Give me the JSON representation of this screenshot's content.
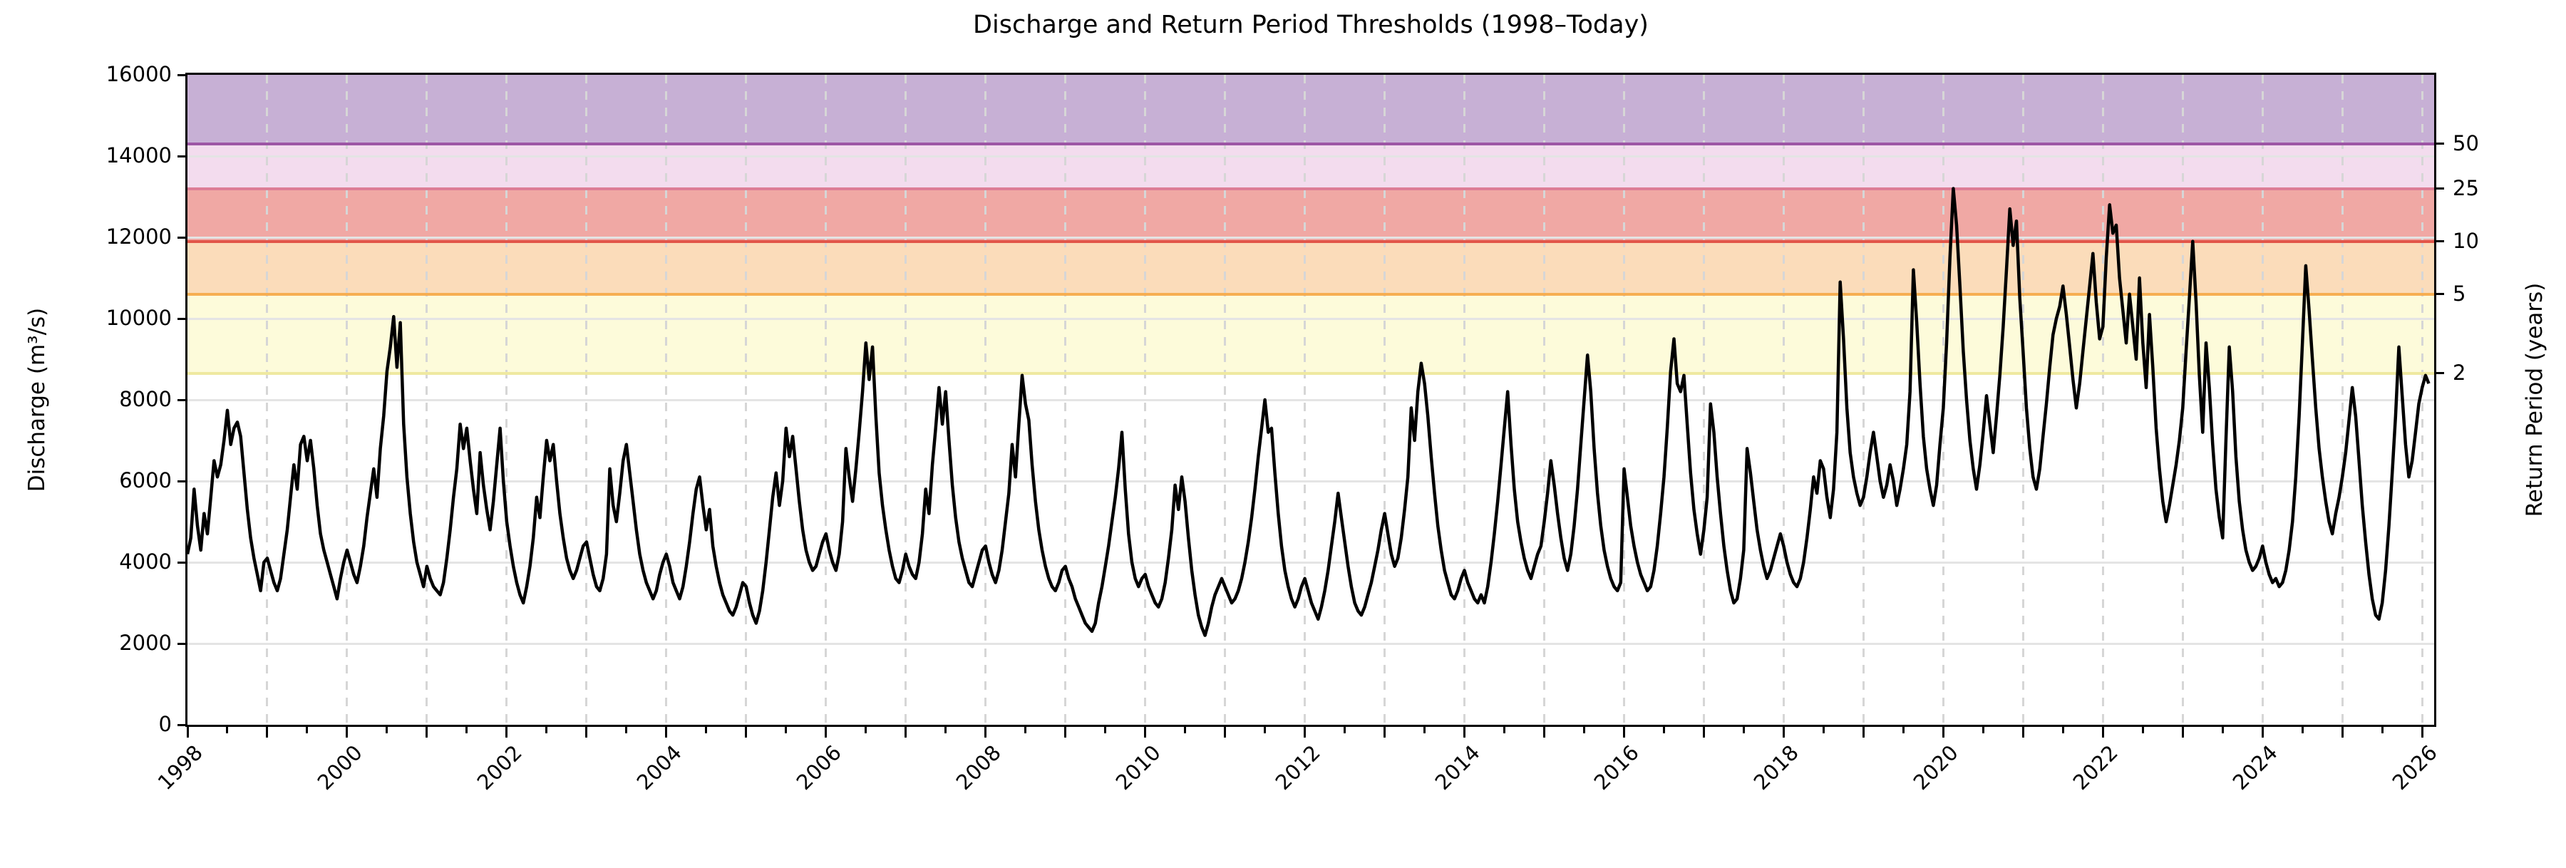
{
  "chart_data": {
    "type": "line",
    "title": "Discharge and Return Period Thresholds (1998–Today)",
    "ylabel_left": "Discharge (m³/s)",
    "ylabel_right": "Return Period (years)",
    "xlabel": "",
    "ylim": [
      0,
      16000
    ],
    "xlim": [
      1998.0,
      2026.15
    ],
    "y_ticks": [
      0,
      2000,
      4000,
      6000,
      8000,
      10000,
      12000,
      14000,
      16000
    ],
    "x_ticks_labeled": [
      1998,
      2000,
      2002,
      2004,
      2006,
      2008,
      2010,
      2012,
      2014,
      2016,
      2018,
      2020,
      2022,
      2024,
      2026
    ],
    "x_major_tick_step": 1,
    "x_minor_tick_step": 0.5,
    "grid": {
      "horizontal": "solid",
      "vertical": "dashed",
      "vertical_step_years": 1
    },
    "legend_position": "none",
    "line_color": "#000000",
    "thresholds": [
      {
        "name": "2-year",
        "return_period_label": "2",
        "discharge": 8650,
        "band_to": 10600,
        "band_color": "#fdfbda",
        "line_color": "#efe9a0"
      },
      {
        "name": "5-year",
        "return_period_label": "5",
        "discharge": 10600,
        "band_to": 11900,
        "band_color": "#fbdcba",
        "line_color": "#f6ae52"
      },
      {
        "name": "10-year",
        "return_period_label": "10",
        "discharge": 11900,
        "band_to": 13200,
        "band_color": "#f0a8a4",
        "line_color": "#e2564a"
      },
      {
        "name": "25-year",
        "return_period_label": "25",
        "discharge": 13200,
        "band_to": 14300,
        "band_color": "#f3dcee",
        "line_color": "#dd7d96"
      },
      {
        "name": "50-year",
        "return_period_label": "50",
        "discharge": 14300,
        "band_to": 16000,
        "band_color": "#c7b0d5",
        "line_color": "#9d56a5"
      }
    ],
    "series": [
      {
        "name": "Discharge",
        "unit": "m³/s",
        "color": "#000000",
        "x_start_year": 1998.0,
        "x_step_years": 0.0416667,
        "values": [
          4200,
          4600,
          5800,
          4900,
          4300,
          5200,
          4700,
          5600,
          6500,
          6100,
          6400,
          7000,
          7740,
          6900,
          7300,
          7450,
          7100,
          6200,
          5300,
          4600,
          4100,
          3700,
          3300,
          4000,
          4100,
          3800,
          3500,
          3300,
          3600,
          4200,
          4800,
          5600,
          6400,
          5800,
          6900,
          7100,
          6500,
          7000,
          6300,
          5400,
          4700,
          4300,
          4000,
          3700,
          3400,
          3100,
          3600,
          4000,
          4300,
          4000,
          3700,
          3500,
          3900,
          4400,
          5100,
          5700,
          6300,
          5600,
          6800,
          7600,
          8700,
          9300,
          10050,
          8800,
          9900,
          7400,
          6100,
          5200,
          4500,
          4000,
          3700,
          3400,
          3900,
          3600,
          3400,
          3300,
          3200,
          3500,
          4100,
          4800,
          5600,
          6300,
          7400,
          6800,
          7300,
          6500,
          5800,
          5200,
          6700,
          5900,
          5300,
          4800,
          5500,
          6400,
          7300,
          6000,
          5000,
          4400,
          3900,
          3500,
          3200,
          3000,
          3400,
          3900,
          4600,
          5600,
          5100,
          6100,
          7000,
          6500,
          6900,
          6000,
          5200,
          4600,
          4100,
          3800,
          3600,
          3800,
          4100,
          4400,
          4500,
          4100,
          3700,
          3400,
          3300,
          3600,
          4200,
          6300,
          5400,
          5000,
          5700,
          6500,
          6900,
          6200,
          5500,
          4800,
          4200,
          3800,
          3500,
          3300,
          3100,
          3300,
          3700,
          4000,
          4200,
          3900,
          3500,
          3300,
          3100,
          3400,
          3900,
          4500,
          5200,
          5800,
          6100,
          5400,
          4800,
          5300,
          4400,
          3900,
          3500,
          3200,
          3000,
          2800,
          2700,
          2900,
          3200,
          3500,
          3400,
          3000,
          2700,
          2500,
          2800,
          3300,
          4000,
          4800,
          5600,
          6200,
          5400,
          6000,
          7300,
          6600,
          7100,
          6300,
          5500,
          4800,
          4300,
          4000,
          3800,
          3900,
          4200,
          4500,
          4700,
          4300,
          4000,
          3800,
          4200,
          5000,
          6800,
          6100,
          5500,
          6300,
          7200,
          8200,
          9400,
          8500,
          9300,
          7600,
          6200,
          5400,
          4800,
          4300,
          3900,
          3600,
          3500,
          3800,
          4200,
          3900,
          3700,
          3600,
          4000,
          4700,
          5800,
          5200,
          6400,
          7300,
          8300,
          7400,
          8200,
          7000,
          5900,
          5100,
          4500,
          4100,
          3800,
          3500,
          3400,
          3700,
          4000,
          4300,
          4400,
          4000,
          3700,
          3500,
          3800,
          4300,
          5000,
          5700,
          6900,
          6100,
          7400,
          8600,
          7900,
          7500,
          6400,
          5500,
          4800,
          4300,
          3900,
          3600,
          3400,
          3300,
          3500,
          3800,
          3900,
          3600,
          3400,
          3100,
          2900,
          2700,
          2500,
          2400,
          2300,
          2500,
          3000,
          3400,
          3900,
          4400,
          5000,
          5600,
          6300,
          7200,
          5800,
          4700,
          4000,
          3600,
          3400,
          3600,
          3700,
          3400,
          3200,
          3000,
          2900,
          3100,
          3500,
          4100,
          4800,
          5900,
          5300,
          6100,
          5500,
          4600,
          3800,
          3200,
          2700,
          2400,
          2200,
          2500,
          2900,
          3200,
          3400,
          3600,
          3400,
          3200,
          3000,
          3100,
          3300,
          3600,
          4000,
          4500,
          5100,
          5800,
          6600,
          7300,
          8000,
          7200,
          7300,
          6200,
          5200,
          4400,
          3800,
          3400,
          3100,
          2900,
          3100,
          3400,
          3600,
          3300,
          3000,
          2800,
          2600,
          2900,
          3300,
          3800,
          4400,
          5000,
          5700,
          5100,
          4500,
          3900,
          3400,
          3000,
          2800,
          2700,
          2900,
          3200,
          3500,
          3900,
          4300,
          4800,
          5200,
          4700,
          4200,
          3900,
          4100,
          4600,
          5300,
          6100,
          7800,
          7000,
          8200,
          8900,
          8400,
          7600,
          6600,
          5700,
          4900,
          4300,
          3800,
          3500,
          3200,
          3100,
          3300,
          3600,
          3800,
          3500,
          3300,
          3100,
          3000,
          3200,
          3000,
          3400,
          4000,
          4700,
          5500,
          6400,
          7300,
          8200,
          6900,
          5800,
          5000,
          4500,
          4100,
          3800,
          3600,
          3900,
          4200,
          4400,
          5000,
          5700,
          6500,
          5900,
          5200,
          4600,
          4100,
          3800,
          4200,
          4900,
          5800,
          6900,
          8000,
          9100,
          8200,
          6800,
          5700,
          4900,
          4300,
          3900,
          3600,
          3400,
          3300,
          3500,
          6300,
          5600,
          4900,
          4400,
          4000,
          3700,
          3500,
          3300,
          3400,
          3800,
          4400,
          5200,
          6100,
          7300,
          8700,
          9500,
          8400,
          8200,
          8600,
          7400,
          6200,
          5300,
          4700,
          4200,
          4800,
          5600,
          7900,
          7200,
          6100,
          5200,
          4400,
          3800,
          3300,
          3000,
          3100,
          3600,
          4300,
          6800,
          6200,
          5500,
          4800,
          4300,
          3900,
          3600,
          3800,
          4100,
          4400,
          4700,
          4400,
          4000,
          3700,
          3500,
          3400,
          3600,
          4000,
          4600,
          5300,
          6100,
          5700,
          6500,
          6300,
          5600,
          5100,
          5800,
          7200,
          10900,
          9500,
          7800,
          6700,
          6100,
          5700,
          5400,
          5600,
          6100,
          6700,
          7200,
          6600,
          6000,
          5600,
          5900,
          6400,
          6000,
          5400,
          5800,
          6300,
          6900,
          8200,
          11200,
          9900,
          8400,
          7100,
          6300,
          5800,
          5400,
          5900,
          6900,
          7800,
          9400,
          11500,
          13200,
          12300,
          10800,
          9200,
          8000,
          7000,
          6300,
          5800,
          6400,
          7200,
          8100,
          7400,
          6700,
          7600,
          8600,
          9800,
          11200,
          12700,
          11800,
          12400,
          10500,
          9200,
          7800,
          6800,
          6100,
          5800,
          6300,
          7100,
          7900,
          8800,
          9600,
          10000,
          10300,
          10800,
          10100,
          9300,
          8500,
          7800,
          8400,
          9200,
          10000,
          10800,
          11600,
          10400,
          9500,
          9800,
          11500,
          12800,
          12100,
          12300,
          11000,
          10200,
          9400,
          10600,
          9800,
          9000,
          11000,
          9400,
          8300,
          10100,
          8800,
          7300,
          6300,
          5500,
          5000,
          5400,
          5900,
          6400,
          7000,
          7800,
          9200,
          10500,
          11900,
          10400,
          8600,
          7200,
          9400,
          8300,
          6900,
          5800,
          5100,
          4600,
          7000,
          9300,
          8200,
          6600,
          5500,
          4800,
          4300,
          4000,
          3800,
          3900,
          4100,
          4400,
          4000,
          3700,
          3500,
          3600,
          3400,
          3500,
          3800,
          4300,
          5000,
          6100,
          7600,
          9400,
          11300,
          10200,
          9000,
          7800,
          6800,
          6100,
          5500,
          5000,
          4700,
          5200,
          5600,
          6100,
          6700,
          7500,
          8300,
          7600,
          6500,
          5400,
          4500,
          3700,
          3100,
          2700,
          2600,
          3000,
          3800,
          4900,
          6200,
          7600,
          9300,
          8100,
          6900,
          6100,
          6500,
          7200,
          7900,
          8300,
          8600,
          8400
        ]
      }
    ]
  }
}
